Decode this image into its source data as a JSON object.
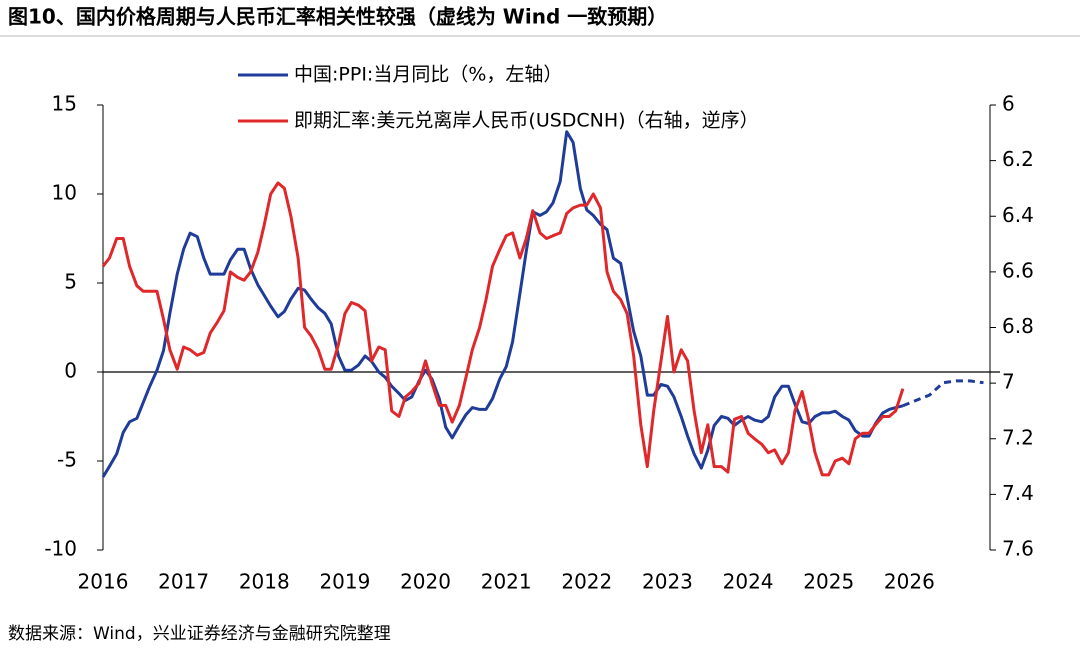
{
  "chart_data": {
    "type": "line",
    "title": "图10、国内价格周期与人民币汇率相关性较强（虚线为 Wind 一致预期）",
    "source": "数据来源：Wind，兴业证券经济与金融研究院整理",
    "x": [
      2016.0,
      2016.08,
      2016.17,
      2016.25,
      2016.33,
      2016.42,
      2016.5,
      2016.58,
      2016.67,
      2016.75,
      2016.83,
      2016.92,
      2017.0,
      2017.08,
      2017.17,
      2017.25,
      2017.33,
      2017.42,
      2017.5,
      2017.58,
      2017.67,
      2017.75,
      2017.83,
      2017.92,
      2018.0,
      2018.08,
      2018.17,
      2018.25,
      2018.33,
      2018.42,
      2018.5,
      2018.58,
      2018.67,
      2018.75,
      2018.83,
      2018.92,
      2019.0,
      2019.08,
      2019.17,
      2019.25,
      2019.33,
      2019.42,
      2019.5,
      2019.58,
      2019.67,
      2019.75,
      2019.83,
      2019.92,
      2020.0,
      2020.08,
      2020.17,
      2020.25,
      2020.33,
      2020.42,
      2020.5,
      2020.58,
      2020.67,
      2020.75,
      2020.83,
      2020.92,
      2021.0,
      2021.08,
      2021.17,
      2021.25,
      2021.33,
      2021.42,
      2021.5,
      2021.58,
      2021.67,
      2021.75,
      2021.83,
      2021.92,
      2022.0,
      2022.08,
      2022.17,
      2022.25,
      2022.33,
      2022.42,
      2022.5,
      2022.58,
      2022.67,
      2022.75,
      2022.83,
      2022.92,
      2023.0,
      2023.08,
      2023.17,
      2023.25,
      2023.33,
      2023.42,
      2023.5,
      2023.58,
      2023.67,
      2023.75,
      2023.83,
      2023.92,
      2024.0,
      2024.08,
      2024.17,
      2024.25,
      2024.33,
      2024.42,
      2024.5,
      2024.58,
      2024.67,
      2024.75,
      2024.83,
      2024.92,
      2025.0,
      2025.08,
      2025.17,
      2025.25,
      2025.33,
      2025.42,
      2025.5,
      2025.58,
      2025.67,
      2025.75,
      2025.83,
      2025.92
    ],
    "series": [
      {
        "name": "中国:PPI:当月同比（%，左轴）",
        "color": "#1f3c99",
        "values": [
          -5.9,
          -5.3,
          -4.6,
          -3.4,
          -2.8,
          -2.6,
          -1.7,
          -0.8,
          0.1,
          1.2,
          3.3,
          5.5,
          6.9,
          7.8,
          7.6,
          6.4,
          5.5,
          5.5,
          5.5,
          6.3,
          6.9,
          6.9,
          5.8,
          4.9,
          4.3,
          3.7,
          3.1,
          3.4,
          4.1,
          4.7,
          4.6,
          4.1,
          3.6,
          3.3,
          2.7,
          0.9,
          0.1,
          0.1,
          0.4,
          0.9,
          0.6,
          0.0,
          -0.3,
          -0.8,
          -1.2,
          -1.6,
          -1.4,
          -0.5,
          0.1,
          -0.4,
          -1.5,
          -3.1,
          -3.7,
          -3.0,
          -2.4,
          -2.0,
          -2.1,
          -2.1,
          -1.5,
          -0.4,
          0.3,
          1.7,
          4.4,
          6.8,
          9.0,
          8.8,
          9.0,
          9.5,
          10.7,
          13.5,
          12.9,
          10.3,
          9.1,
          8.8,
          8.3,
          8.0,
          6.4,
          6.1,
          4.2,
          2.3,
          0.9,
          -1.3,
          -1.3,
          -0.7,
          -0.8,
          -1.4,
          -2.5,
          -3.6,
          -4.6,
          -5.4,
          -4.4,
          -3.0,
          -2.5,
          -2.6,
          -3.0,
          -2.7,
          -2.5,
          -2.7,
          -2.8,
          -2.5,
          -1.4,
          -0.8,
          -0.8,
          -1.8,
          -2.8,
          -2.9,
          -2.5,
          -2.3,
          -2.3,
          -2.2,
          -2.5,
          -2.7,
          -3.3,
          -3.6,
          -3.6,
          -2.9,
          -2.3,
          -2.1,
          -2.0,
          -1.9
        ]
      },
      {
        "name": "即期汇率:美元兑离岸人民币(USDCNH)（右轴，逆序）",
        "color": "#e0282b",
        "axis": "y2",
        "values": [
          6.58,
          6.55,
          6.48,
          6.48,
          6.58,
          6.65,
          6.67,
          6.67,
          6.67,
          6.77,
          6.88,
          6.95,
          6.87,
          6.88,
          6.9,
          6.89,
          6.82,
          6.78,
          6.74,
          6.6,
          6.62,
          6.63,
          6.6,
          6.53,
          6.43,
          6.32,
          6.28,
          6.3,
          6.4,
          6.55,
          6.8,
          6.83,
          6.88,
          6.95,
          6.95,
          6.86,
          6.75,
          6.71,
          6.72,
          6.74,
          6.92,
          6.87,
          6.88,
          7.1,
          7.12,
          7.05,
          7.03,
          7.0,
          6.92,
          7.0,
          7.08,
          7.08,
          7.14,
          7.08,
          6.98,
          6.88,
          6.8,
          6.7,
          6.58,
          6.52,
          6.47,
          6.46,
          6.55,
          6.48,
          6.38,
          6.46,
          6.48,
          6.47,
          6.46,
          6.39,
          6.37,
          6.36,
          6.36,
          6.32,
          6.37,
          6.6,
          6.67,
          6.7,
          6.75,
          6.9,
          7.15,
          7.3,
          7.1,
          6.92,
          6.76,
          6.96,
          6.88,
          6.92,
          7.1,
          7.25,
          7.15,
          7.3,
          7.3,
          7.32,
          7.13,
          7.12,
          7.18,
          7.2,
          7.22,
          7.25,
          7.24,
          7.29,
          7.25,
          7.1,
          7.03,
          7.13,
          7.25,
          7.33,
          7.33,
          7.28,
          7.27,
          7.29,
          7.2,
          7.18,
          7.18,
          7.15,
          7.12,
          7.12,
          7.1,
          7.02
        ]
      },
      {
        "color": "#1f3c99",
        "dashed": true,
        "x": [
          2025.92,
          2026.08,
          2026.25,
          2026.42,
          2026.58,
          2026.75,
          2026.92
        ],
        "values": [
          -1.9,
          -1.6,
          -1.3,
          -0.6,
          -0.5,
          -0.5,
          -0.6
        ]
      }
    ],
    "xlim": [
      2016,
      2027
    ],
    "xticks": [
      2016,
      2017,
      2018,
      2019,
      2020,
      2021,
      2022,
      2023,
      2024,
      2025,
      2026
    ],
    "ylim": [
      -10,
      15
    ],
    "yticks": [
      -10,
      -5,
      0,
      5,
      10,
      15
    ],
    "y2lim": [
      6,
      7.6
    ],
    "y2ticks": [
      6,
      6.2,
      6.4,
      6.6,
      6.8,
      7,
      7.2,
      7.4,
      7.6
    ],
    "y2_inverted": true,
    "zero_line": true,
    "legend": "top"
  }
}
